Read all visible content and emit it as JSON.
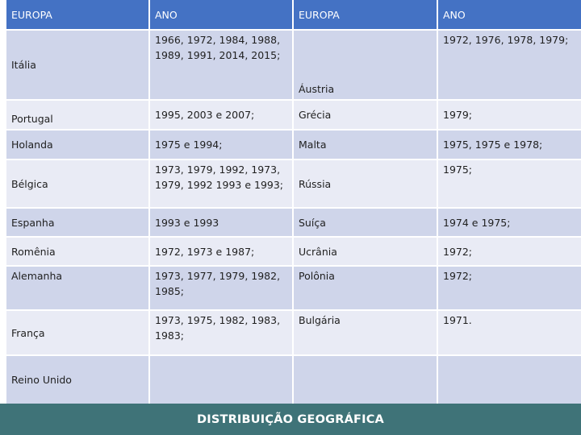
{
  "table": {
    "headers": [
      "EUROPA",
      "ANO",
      "EUROPA",
      "ANO"
    ],
    "rows": [
      {
        "c1": "Itália",
        "c2": "1966, 1972, 1984, 1988, 1989, 1991, 2014, 2015;",
        "c3": "Áustria",
        "c4": "1972, 1976, 1978,  1979;"
      },
      {
        "c1": "Portugal",
        "c2": "1995, 2003 e 2007;",
        "c3": "Grécia",
        "c4": "1979;"
      },
      {
        "c1": "Holanda",
        "c2": "1975 e 1994;",
        "c3": "Malta",
        "c4": "1975, 1975 e 1978;"
      },
      {
        "c1": "Bélgica",
        "c2": "1973, 1979, 1992, 1973, 1979, 1992 1993 e 1993;",
        "c3": "Rússia",
        "c4": "1975;"
      },
      {
        "c1": "Espanha",
        "c2": "1993 e 1993",
        "c3": "Suíça",
        "c4": "1974 e 1975;"
      },
      {
        "c1": "Romênia",
        "c2": "1972, 1973 e 1987;",
        "c3": "Ucrânia",
        "c4": "1972;"
      },
      {
        "c1": "Alemanha",
        "c2": "1973, 1977, 1979, 1982, 1985;",
        "c3": "Polônia",
        "c4": "1972;"
      },
      {
        "c1": "França",
        "c2": "1973, 1975, 1982, 1983, 1983;",
        "c3": "Bulgária",
        "c4": "1971."
      },
      {
        "c1": "Reino Unido",
        "c2": "",
        "c3": "",
        "c4": ""
      }
    ]
  },
  "footer": {
    "title": "DISTRIBUIÇÃO GEOGRÁFICA"
  }
}
